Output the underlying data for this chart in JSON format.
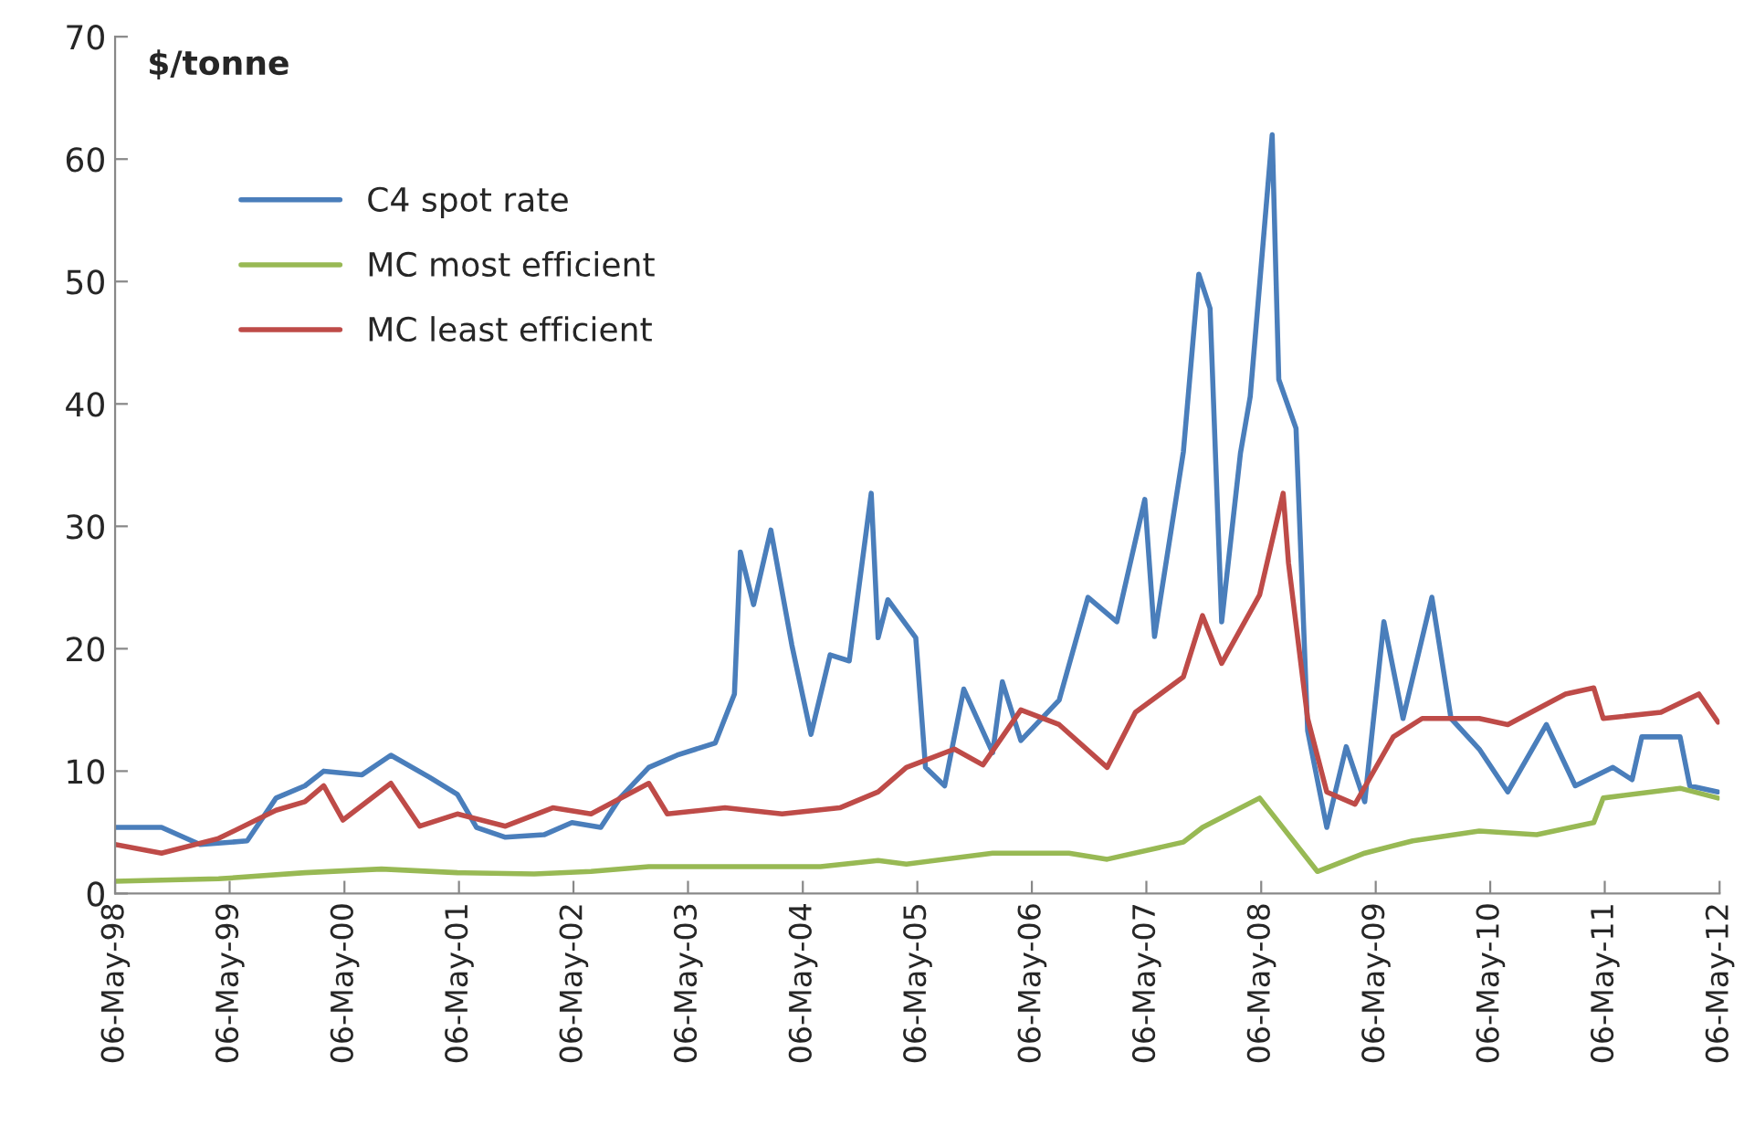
{
  "chart_data": {
    "type": "line",
    "ylabel": "$/tonne",
    "xlim": [
      "1998-05-06",
      "2012-05-06"
    ],
    "xticks": [
      {
        "value": "1998-05-06",
        "label": "06-May-98"
      },
      {
        "value": "1999-05-06",
        "label": "06-May-99"
      },
      {
        "value": "2000-05-06",
        "label": "06-May-00"
      },
      {
        "value": "2001-05-06",
        "label": "06-May-01"
      },
      {
        "value": "2002-05-06",
        "label": "06-May-02"
      },
      {
        "value": "2003-05-06",
        "label": "06-May-03"
      },
      {
        "value": "2004-05-06",
        "label": "06-May-04"
      },
      {
        "value": "2005-05-06",
        "label": "06-May-05"
      },
      {
        "value": "2006-05-06",
        "label": "06-May-06"
      },
      {
        "value": "2007-05-06",
        "label": "06-May-07"
      },
      {
        "value": "2008-05-06",
        "label": "06-May-08"
      },
      {
        "value": "2009-05-06",
        "label": "06-May-09"
      },
      {
        "value": "2010-05-06",
        "label": "06-May-10"
      },
      {
        "value": "2011-05-06",
        "label": "06-May-11"
      },
      {
        "value": "2012-05-06",
        "label": "06-May-12"
      }
    ],
    "ylim": [
      0,
      70
    ],
    "yticks": [
      0,
      10,
      20,
      30,
      40,
      50,
      60,
      70
    ],
    "grid": false,
    "legend": "top left",
    "marker": "none",
    "line_style": "solid",
    "series": [
      {
        "name": "C4 spot rate",
        "color": "#4a7ebb",
        "x": [
          "1998-05-06",
          "1998-10",
          "1999-02",
          "1999-07",
          "1999-10",
          "2000-01",
          "2000-03",
          "2000-07",
          "2000-10",
          "2001-02",
          "2001-05",
          "2001-07",
          "2001-10",
          "2002-02",
          "2002-05",
          "2002-08",
          "2002-10",
          "2003-01",
          "2003-04",
          "2003-08",
          "2003-10-01",
          "2003-10-20",
          "2003-12",
          "2004-01-25",
          "2004-04",
          "2004-06",
          "2004-08",
          "2004-10",
          "2004-12-10",
          "2005-01",
          "2005-02",
          "2005-05",
          "2005-06",
          "2005-08",
          "2005-10",
          "2006-01",
          "2006-02",
          "2006-04",
          "2006-08",
          "2006-11",
          "2007-02",
          "2007-05",
          "2007-06",
          "2007-09",
          "2007-10-20",
          "2007-11-25",
          "2008-01",
          "2008-03",
          "2008-04",
          "2008-06-10",
          "2008-07",
          "2008-08-25",
          "2008-10",
          "2008-12",
          "2009-02",
          "2009-04",
          "2009-06",
          "2009-08",
          "2009-11",
          "2010-01",
          "2010-04",
          "2010-07",
          "2010-11",
          "2011-02",
          "2011-06",
          "2011-08",
          "2011-09",
          "2012-01",
          "2012-02",
          "2012-05"
        ],
        "values": [
          5.4,
          5.4,
          4.0,
          4.3,
          7.8,
          8.8,
          10.0,
          9.7,
          11.3,
          9.5,
          8.1,
          5.4,
          4.6,
          4.8,
          5.8,
          5.4,
          7.8,
          10.3,
          11.3,
          12.3,
          16.3,
          27.9,
          23.6,
          29.7,
          20.3,
          13.0,
          19.5,
          19.0,
          32.7,
          20.9,
          24.0,
          20.9,
          10.3,
          8.8,
          16.7,
          11.5,
          17.3,
          12.5,
          15.8,
          24.2,
          22.2,
          32.2,
          21.0,
          36.1,
          50.6,
          47.8,
          22.2,
          36.0,
          40.6,
          62.0,
          42.0,
          38.0,
          13.3,
          5.4,
          12.0,
          7.5,
          22.2,
          14.3,
          24.2,
          14.3,
          11.8,
          8.3,
          13.8,
          8.8,
          10.3,
          9.3,
          12.8,
          12.8,
          8.8,
          8.3
        ]
      },
      {
        "name": "MC most efficient",
        "color": "#98b954",
        "x": [
          "1998-05-06",
          "1999-04",
          "2000-01",
          "2000-09",
          "2001-05",
          "2002-01",
          "2002-07",
          "2003-01",
          "2003-07",
          "2004-07",
          "2005-01",
          "2005-04",
          "2006-01",
          "2006-09",
          "2007-01",
          "2007-09",
          "2007-11",
          "2008-05",
          "2008-11",
          "2009-04",
          "2009-09",
          "2010-04",
          "2010-10",
          "2011-04",
          "2011-05",
          "2012-01",
          "2012-05"
        ],
        "values": [
          1.0,
          1.2,
          1.7,
          2.0,
          1.7,
          1.6,
          1.8,
          2.2,
          2.2,
          2.2,
          2.7,
          2.4,
          3.3,
          3.3,
          2.8,
          4.2,
          5.4,
          7.8,
          1.8,
          3.3,
          4.3,
          5.1,
          4.8,
          5.8,
          7.8,
          8.6,
          7.8
        ]
      },
      {
        "name": "MC least efficient",
        "color": "#be4b48",
        "x": [
          "1998-05-06",
          "1998-10",
          "1999-04",
          "1999-10",
          "2000-01",
          "2000-03",
          "2000-05",
          "2000-10",
          "2001-01",
          "2001-05",
          "2001-10",
          "2002-03",
          "2002-07",
          "2003-01",
          "2003-03",
          "2003-09",
          "2004-03",
          "2004-09",
          "2005-01",
          "2005-04",
          "2005-09",
          "2005-12",
          "2006-04",
          "2006-08",
          "2007-01",
          "2007-04",
          "2007-09",
          "2007-11",
          "2008-01",
          "2008-05",
          "2008-07-15",
          "2008-08",
          "2008-10",
          "2008-12",
          "2009-03",
          "2009-07",
          "2009-10",
          "2010-04",
          "2010-07",
          "2011-01",
          "2011-04",
          "2011-05",
          "2011-11",
          "2012-03",
          "2012-05"
        ],
        "values": [
          4.0,
          3.3,
          4.5,
          6.8,
          7.5,
          8.8,
          6.0,
          9.0,
          5.5,
          6.5,
          5.5,
          7.0,
          6.5,
          9.0,
          6.5,
          7.0,
          6.5,
          7.0,
          8.3,
          10.3,
          11.8,
          10.5,
          15.0,
          13.8,
          10.3,
          14.8,
          17.7,
          22.7,
          18.8,
          24.4,
          32.7,
          27.0,
          14.3,
          8.3,
          7.3,
          12.8,
          14.3,
          14.3,
          13.8,
          16.3,
          16.8,
          14.3,
          14.8,
          16.3,
          14.0
        ]
      }
    ]
  }
}
